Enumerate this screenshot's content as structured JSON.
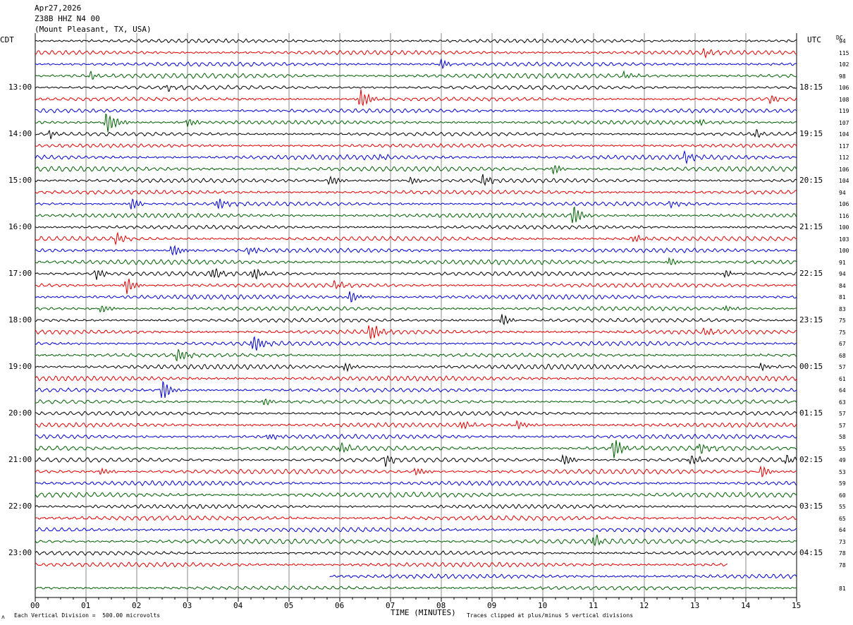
{
  "header": {
    "date": "Apr27,2026",
    "station": "Z38B HHZ N4 00",
    "location": "(Mount Pleasant, TX, USA)"
  },
  "left_tz": "CDT",
  "right_tz": "UTC",
  "dc_header": "DC",
  "footer": {
    "scale_note": "Each Vertical Division =  500.00 microvolts",
    "clip_note": "Traces clipped at plus/minus 5 vertical divisions",
    "corner_mark": "ᴧ"
  },
  "chart_data": {
    "type": "line",
    "title": "",
    "xlabel": "TIME (MINUTES)",
    "xlim": [
      0,
      15
    ],
    "x_ticks": [
      "00",
      "01",
      "02",
      "03",
      "04",
      "05",
      "06",
      "07",
      "08",
      "09",
      "10",
      "11",
      "12",
      "13",
      "14",
      "15"
    ],
    "trace_colors": [
      "#000000",
      "#e00000",
      "#0000d0",
      "#006000"
    ],
    "line_minutes": 15,
    "left_hour_labels": [
      "13:00",
      "14:00",
      "15:00",
      "16:00",
      "17:00",
      "18:00",
      "19:00",
      "20:00",
      "21:00",
      "22:00",
      "23:00"
    ],
    "right_hour_labels": [
      "18:15",
      "19:15",
      "20:15",
      "21:15",
      "22:15",
      "23:15",
      "00:15",
      "01:15",
      "02:15",
      "03:15",
      "04:15"
    ],
    "dc_offsets": [
      94,
      115,
      102,
      98,
      106,
      108,
      119,
      107,
      104,
      117,
      112,
      106,
      104,
      94,
      106,
      116,
      100,
      103,
      100,
      91,
      94,
      84,
      81,
      83,
      75,
      75,
      67,
      68,
      57,
      61,
      64,
      63,
      57,
      57,
      58,
      55,
      49,
      53,
      59,
      60,
      55,
      65,
      64,
      73,
      78,
      78,
      null,
      81
    ],
    "events": [
      {
        "row": 1,
        "minute": 13.2,
        "amplitude": 1.6
      },
      {
        "row": 2,
        "minute": 8.0,
        "amplitude": 1.5
      },
      {
        "row": 3,
        "minute": 1.1,
        "amplitude": 1.2
      },
      {
        "row": 3,
        "minute": 11.6,
        "amplitude": 1.2
      },
      {
        "row": 4,
        "minute": 2.6,
        "amplitude": 1.0
      },
      {
        "row": 5,
        "minute": 6.4,
        "amplitude": 3.0
      },
      {
        "row": 5,
        "minute": 14.5,
        "amplitude": 1.6
      },
      {
        "row": 7,
        "minute": 1.4,
        "amplitude": 4.0
      },
      {
        "row": 7,
        "minute": 3.0,
        "amplitude": 1.2
      },
      {
        "row": 7,
        "minute": 13.1,
        "amplitude": 1.1
      },
      {
        "row": 8,
        "minute": 0.3,
        "amplitude": 1.4
      },
      {
        "row": 8,
        "minute": 14.2,
        "amplitude": 1.2
      },
      {
        "row": 10,
        "minute": 6.8,
        "amplitude": 1.2
      },
      {
        "row": 10,
        "minute": 12.8,
        "amplitude": 1.6
      },
      {
        "row": 11,
        "minute": 10.2,
        "amplitude": 1.6
      },
      {
        "row": 12,
        "minute": 5.8,
        "amplitude": 1.6
      },
      {
        "row": 12,
        "minute": 7.4,
        "amplitude": 1.2
      },
      {
        "row": 12,
        "minute": 8.8,
        "amplitude": 1.8
      },
      {
        "row": 14,
        "minute": 1.9,
        "amplitude": 2.0
      },
      {
        "row": 14,
        "minute": 3.6,
        "amplitude": 2.0
      },
      {
        "row": 14,
        "minute": 12.5,
        "amplitude": 1.2
      },
      {
        "row": 15,
        "minute": 10.6,
        "amplitude": 3.5
      },
      {
        "row": 17,
        "minute": 1.6,
        "amplitude": 2.2
      },
      {
        "row": 17,
        "minute": 11.8,
        "amplitude": 1.2
      },
      {
        "row": 18,
        "minute": 2.7,
        "amplitude": 2.2
      },
      {
        "row": 18,
        "minute": 4.2,
        "amplitude": 1.2
      },
      {
        "row": 19,
        "minute": 12.5,
        "amplitude": 1.4
      },
      {
        "row": 20,
        "minute": 1.2,
        "amplitude": 1.6
      },
      {
        "row": 20,
        "minute": 3.5,
        "amplitude": 2.2
      },
      {
        "row": 20,
        "minute": 4.3,
        "amplitude": 2.0
      },
      {
        "row": 20,
        "minute": 13.6,
        "amplitude": 1.2
      },
      {
        "row": 21,
        "minute": 1.8,
        "amplitude": 2.4
      },
      {
        "row": 21,
        "minute": 5.9,
        "amplitude": 1.2
      },
      {
        "row": 22,
        "minute": 6.2,
        "amplitude": 2.0
      },
      {
        "row": 23,
        "minute": 1.3,
        "amplitude": 1.4
      },
      {
        "row": 23,
        "minute": 13.6,
        "amplitude": 1.2
      },
      {
        "row": 24,
        "minute": 9.2,
        "amplitude": 2.0
      },
      {
        "row": 25,
        "minute": 6.6,
        "amplitude": 3.0
      },
      {
        "row": 25,
        "minute": 13.2,
        "amplitude": 1.2
      },
      {
        "row": 26,
        "minute": 4.3,
        "amplitude": 3.5
      },
      {
        "row": 27,
        "minute": 2.8,
        "amplitude": 2.5
      },
      {
        "row": 28,
        "minute": 6.1,
        "amplitude": 1.4
      },
      {
        "row": 28,
        "minute": 14.3,
        "amplitude": 1.2
      },
      {
        "row": 30,
        "minute": 2.5,
        "amplitude": 3.0
      },
      {
        "row": 31,
        "minute": 4.5,
        "amplitude": 1.2
      },
      {
        "row": 33,
        "minute": 8.4,
        "amplitude": 1.2
      },
      {
        "row": 33,
        "minute": 9.5,
        "amplitude": 1.2
      },
      {
        "row": 34,
        "minute": 4.6,
        "amplitude": 1.2
      },
      {
        "row": 35,
        "minute": 6.0,
        "amplitude": 1.6
      },
      {
        "row": 35,
        "minute": 11.4,
        "amplitude": 3.5
      },
      {
        "row": 35,
        "minute": 13.1,
        "amplitude": 2.0
      },
      {
        "row": 36,
        "minute": 6.9,
        "amplitude": 1.6
      },
      {
        "row": 36,
        "minute": 10.4,
        "amplitude": 2.0
      },
      {
        "row": 36,
        "minute": 12.9,
        "amplitude": 1.8
      },
      {
        "row": 36,
        "minute": 14.8,
        "amplitude": 1.6
      },
      {
        "row": 37,
        "minute": 1.3,
        "amplitude": 1.2
      },
      {
        "row": 37,
        "minute": 7.5,
        "amplitude": 1.4
      },
      {
        "row": 37,
        "minute": 14.3,
        "amplitude": 2.0
      },
      {
        "row": 43,
        "minute": 11.0,
        "amplitude": 1.8
      }
    ],
    "partial_rows": [
      {
        "row": 45,
        "end_minute": 13.65
      },
      {
        "row": 46,
        "start_minute": 5.8
      }
    ]
  }
}
